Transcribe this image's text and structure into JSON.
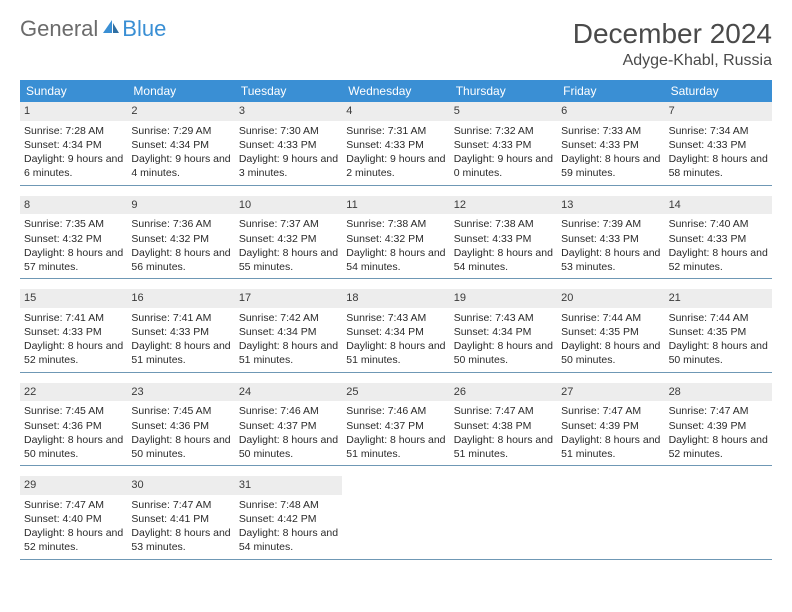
{
  "brand": {
    "part1": "General",
    "part2": "Blue"
  },
  "title": "December 2024",
  "location": "Adyge-Khabl, Russia",
  "colors": {
    "header_bg": "#3a8fd4",
    "header_text": "#ffffff",
    "daynum_bg": "#ededed",
    "divider": "#6f98b5",
    "text": "#2a2a2a",
    "brand_gray": "#6b6b6b",
    "brand_blue": "#3a8fd4",
    "background": "#ffffff"
  },
  "typography": {
    "title_fontsize": 28,
    "location_fontsize": 16,
    "dow_fontsize": 12,
    "cell_fontsize": 10.5,
    "logo_fontsize": 22
  },
  "days_of_week": [
    "Sunday",
    "Monday",
    "Tuesday",
    "Wednesday",
    "Thursday",
    "Friday",
    "Saturday"
  ],
  "weeks": [
    [
      {
        "n": "1",
        "sunrise": "7:28 AM",
        "sunset": "4:34 PM",
        "daylight": "9 hours and 6 minutes."
      },
      {
        "n": "2",
        "sunrise": "7:29 AM",
        "sunset": "4:34 PM",
        "daylight": "9 hours and 4 minutes."
      },
      {
        "n": "3",
        "sunrise": "7:30 AM",
        "sunset": "4:33 PM",
        "daylight": "9 hours and 3 minutes."
      },
      {
        "n": "4",
        "sunrise": "7:31 AM",
        "sunset": "4:33 PM",
        "daylight": "9 hours and 2 minutes."
      },
      {
        "n": "5",
        "sunrise": "7:32 AM",
        "sunset": "4:33 PM",
        "daylight": "9 hours and 0 minutes."
      },
      {
        "n": "6",
        "sunrise": "7:33 AM",
        "sunset": "4:33 PM",
        "daylight": "8 hours and 59 minutes."
      },
      {
        "n": "7",
        "sunrise": "7:34 AM",
        "sunset": "4:33 PM",
        "daylight": "8 hours and 58 minutes."
      }
    ],
    [
      {
        "n": "8",
        "sunrise": "7:35 AM",
        "sunset": "4:32 PM",
        "daylight": "8 hours and 57 minutes."
      },
      {
        "n": "9",
        "sunrise": "7:36 AM",
        "sunset": "4:32 PM",
        "daylight": "8 hours and 56 minutes."
      },
      {
        "n": "10",
        "sunrise": "7:37 AM",
        "sunset": "4:32 PM",
        "daylight": "8 hours and 55 minutes."
      },
      {
        "n": "11",
        "sunrise": "7:38 AM",
        "sunset": "4:32 PM",
        "daylight": "8 hours and 54 minutes."
      },
      {
        "n": "12",
        "sunrise": "7:38 AM",
        "sunset": "4:33 PM",
        "daylight": "8 hours and 54 minutes."
      },
      {
        "n": "13",
        "sunrise": "7:39 AM",
        "sunset": "4:33 PM",
        "daylight": "8 hours and 53 minutes."
      },
      {
        "n": "14",
        "sunrise": "7:40 AM",
        "sunset": "4:33 PM",
        "daylight": "8 hours and 52 minutes."
      }
    ],
    [
      {
        "n": "15",
        "sunrise": "7:41 AM",
        "sunset": "4:33 PM",
        "daylight": "8 hours and 52 minutes."
      },
      {
        "n": "16",
        "sunrise": "7:41 AM",
        "sunset": "4:33 PM",
        "daylight": "8 hours and 51 minutes."
      },
      {
        "n": "17",
        "sunrise": "7:42 AM",
        "sunset": "4:34 PM",
        "daylight": "8 hours and 51 minutes."
      },
      {
        "n": "18",
        "sunrise": "7:43 AM",
        "sunset": "4:34 PM",
        "daylight": "8 hours and 51 minutes."
      },
      {
        "n": "19",
        "sunrise": "7:43 AM",
        "sunset": "4:34 PM",
        "daylight": "8 hours and 50 minutes."
      },
      {
        "n": "20",
        "sunrise": "7:44 AM",
        "sunset": "4:35 PM",
        "daylight": "8 hours and 50 minutes."
      },
      {
        "n": "21",
        "sunrise": "7:44 AM",
        "sunset": "4:35 PM",
        "daylight": "8 hours and 50 minutes."
      }
    ],
    [
      {
        "n": "22",
        "sunrise": "7:45 AM",
        "sunset": "4:36 PM",
        "daylight": "8 hours and 50 minutes."
      },
      {
        "n": "23",
        "sunrise": "7:45 AM",
        "sunset": "4:36 PM",
        "daylight": "8 hours and 50 minutes."
      },
      {
        "n": "24",
        "sunrise": "7:46 AM",
        "sunset": "4:37 PM",
        "daylight": "8 hours and 50 minutes."
      },
      {
        "n": "25",
        "sunrise": "7:46 AM",
        "sunset": "4:37 PM",
        "daylight": "8 hours and 51 minutes."
      },
      {
        "n": "26",
        "sunrise": "7:47 AM",
        "sunset": "4:38 PM",
        "daylight": "8 hours and 51 minutes."
      },
      {
        "n": "27",
        "sunrise": "7:47 AM",
        "sunset": "4:39 PM",
        "daylight": "8 hours and 51 minutes."
      },
      {
        "n": "28",
        "sunrise": "7:47 AM",
        "sunset": "4:39 PM",
        "daylight": "8 hours and 52 minutes."
      }
    ],
    [
      {
        "n": "29",
        "sunrise": "7:47 AM",
        "sunset": "4:40 PM",
        "daylight": "8 hours and 52 minutes."
      },
      {
        "n": "30",
        "sunrise": "7:47 AM",
        "sunset": "4:41 PM",
        "daylight": "8 hours and 53 minutes."
      },
      {
        "n": "31",
        "sunrise": "7:48 AM",
        "sunset": "4:42 PM",
        "daylight": "8 hours and 54 minutes."
      },
      null,
      null,
      null,
      null
    ]
  ],
  "labels": {
    "sunrise_prefix": "Sunrise: ",
    "sunset_prefix": "Sunset: ",
    "daylight_prefix": "Daylight: "
  }
}
